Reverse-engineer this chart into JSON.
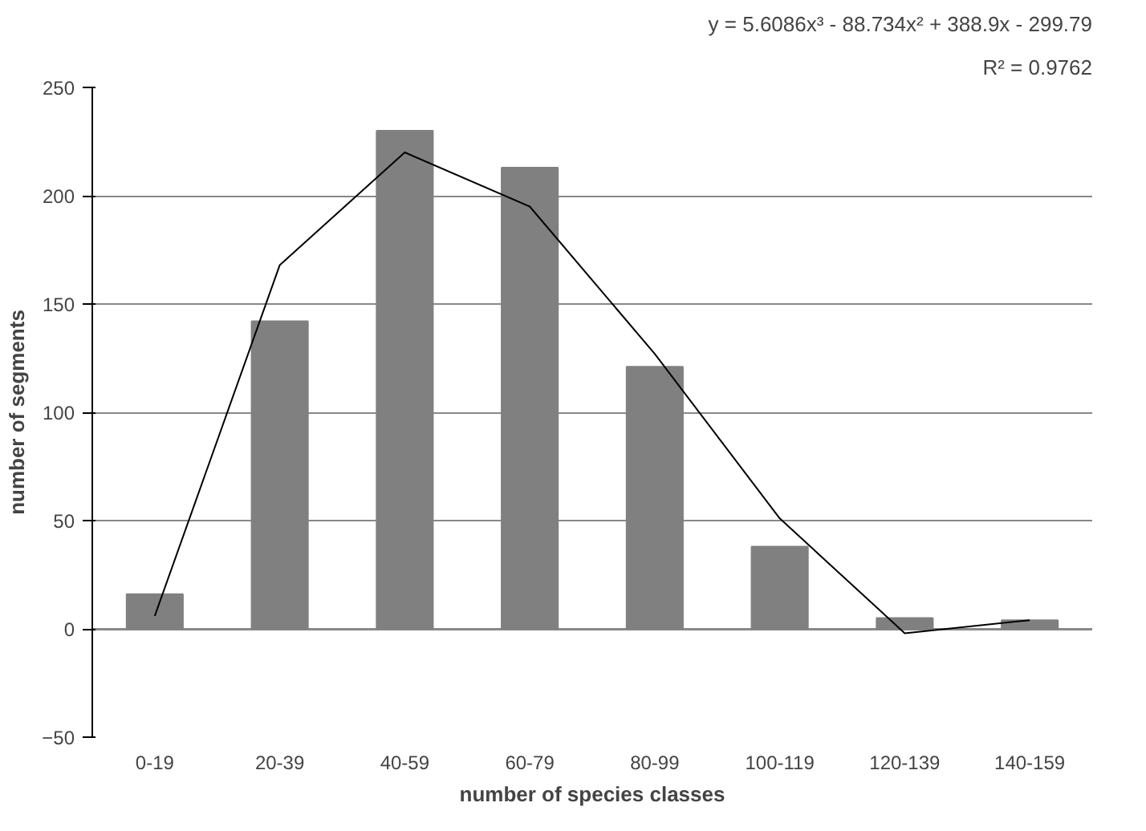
{
  "chart_data": {
    "type": "bar",
    "xlabel": "number of species classes",
    "ylabel": "number of segments",
    "categories": [
      "0-19",
      "20-39",
      "40-59",
      "60-79",
      "80-99",
      "100-119",
      "120-139",
      "140-159"
    ],
    "series": [
      {
        "color": "#808080",
        "values": [
          16,
          142,
          230,
          213,
          121,
          38,
          5,
          4
        ]
      },
      {
        "type": "line",
        "color": "#000000",
        "values": [
          6,
          168,
          220,
          195,
          127,
          51,
          -2,
          4
        ]
      }
    ],
    "ylim": [
      -50,
      250
    ],
    "yticks": [
      -50,
      0,
      50,
      100,
      150,
      200,
      250
    ],
    "grid": "y",
    "annotations": [
      "y = 5.6086x³ - 88.734x² + 388.9x - 299.79",
      "R² = 0.9762"
    ]
  }
}
